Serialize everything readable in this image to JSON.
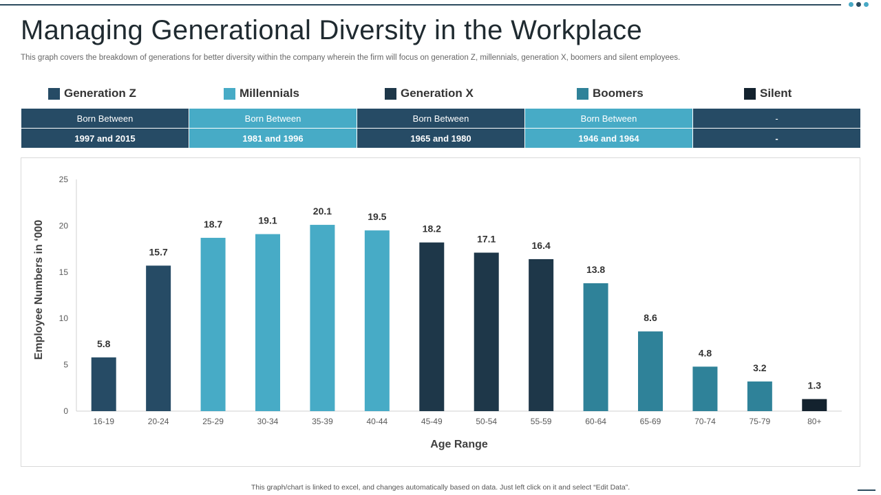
{
  "page": {
    "title": "Managing Generational Diversity in the Workplace",
    "subtitle": "This graph covers the breakdown of generations for better diversity within the company wherein the firm will focus on generation Z, millennials, generation X, boomers and silent employees.",
    "footer": "This graph/chart is linked to excel, and changes automatically based on data. Just left click on it and select “Edit Data”."
  },
  "colors": {
    "accent": "#2b4a5e",
    "dot1": "#48a9c5",
    "dot2": "#2b4a5e",
    "dot3": "#48a9c5"
  },
  "legend": [
    {
      "label": "Generation Z",
      "color": "#264b65"
    },
    {
      "label": "Millennials",
      "color": "#47abc6"
    },
    {
      "label": "Generation X",
      "color": "#1e3749"
    },
    {
      "label": "Boomers",
      "color": "#2f8299"
    },
    {
      "label": "Silent",
      "color": "#13222e"
    }
  ],
  "generations_table": [
    {
      "header": "Born Between",
      "range": "1997 and 2015",
      "color": "#264b65"
    },
    {
      "header": "Born Between",
      "range": "1981 and 1996",
      "color": "#47abc6"
    },
    {
      "header": "Born Between",
      "range": "1965 and 1980",
      "color": "#264b65"
    },
    {
      "header": "Born Between",
      "range": "1946 and 1964",
      "color": "#47abc6"
    },
    {
      "header": "-",
      "range": "-",
      "color": "#264b65"
    }
  ],
  "chart_data": {
    "type": "bar",
    "title": "",
    "xlabel": "Age Range",
    "ylabel": "Employee Numbers in ‘000",
    "ylim": [
      0,
      25
    ],
    "yticks": [
      0,
      5,
      10,
      15,
      20,
      25
    ],
    "grid": false,
    "categories": [
      "16-19",
      "20-24",
      "25-29",
      "30-34",
      "35-39",
      "40-44",
      "45-49",
      "50-54",
      "55-59",
      "60-64",
      "65-69",
      "70-74",
      "75-79",
      "80+"
    ],
    "values": [
      5.8,
      15.7,
      18.7,
      19.1,
      20.1,
      19.5,
      18.2,
      17.1,
      16.4,
      13.8,
      8.6,
      4.8,
      3.2,
      1.3
    ],
    "value_labels": [
      "5.8",
      "15.7",
      "18.7",
      "19.1",
      "20.1",
      "19.5",
      "18.2",
      "17.1",
      "16.4",
      "13.8",
      "8.6",
      "4.8",
      "3.2",
      "1.3"
    ],
    "bar_colors": [
      "#264b65",
      "#264b65",
      "#47abc6",
      "#47abc6",
      "#47abc6",
      "#47abc6",
      "#1e3749",
      "#1e3749",
      "#1e3749",
      "#2f8299",
      "#2f8299",
      "#2f8299",
      "#2f8299",
      "#13222e"
    ]
  }
}
